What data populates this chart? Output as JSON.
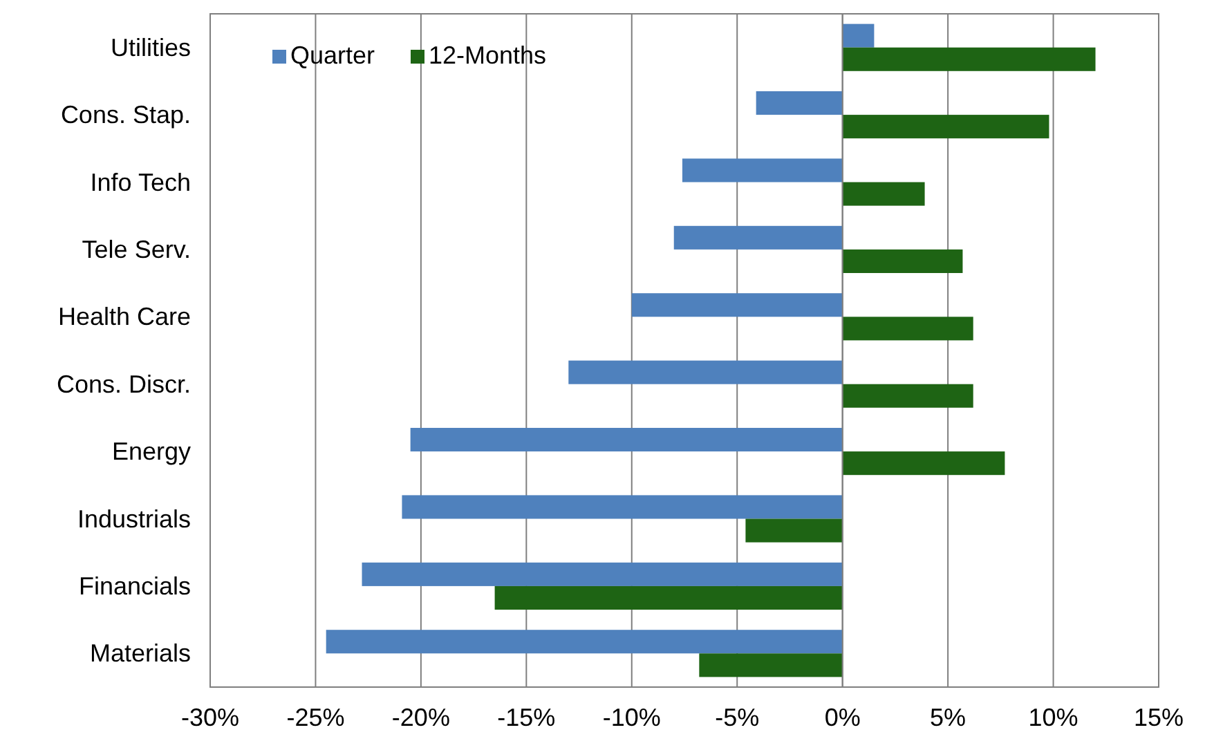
{
  "chart_data": {
    "type": "bar",
    "orientation": "horizontal",
    "categories": [
      "Utilities",
      "Cons. Stap.",
      "Info Tech",
      "Tele Serv.",
      "Health Care",
      "Cons. Discr.",
      "Energy",
      "Industrials",
      "Financials",
      "Materials"
    ],
    "series": [
      {
        "name": "Quarter",
        "color": "#4f81bd",
        "values": [
          1.5,
          -4.1,
          -7.6,
          -8.0,
          -10.0,
          -13.0,
          -20.5,
          -20.9,
          -22.8,
          -24.5
        ]
      },
      {
        "name": "12-Months",
        "color": "#1e6414",
        "values": [
          12.0,
          9.8,
          3.9,
          5.7,
          6.2,
          6.2,
          7.7,
          -4.6,
          -16.5,
          -6.8
        ]
      }
    ],
    "xlim": [
      -30,
      15
    ],
    "xticks": [
      {
        "value": -30,
        "label": "-30%"
      },
      {
        "value": -25,
        "label": "-25%"
      },
      {
        "value": -20,
        "label": "-20%"
      },
      {
        "value": -15,
        "label": "-15%"
      },
      {
        "value": -10,
        "label": "-10%"
      },
      {
        "value": -5,
        "label": "-5%"
      },
      {
        "value": 0,
        "label": "0%"
      },
      {
        "value": 5,
        "label": "5%"
      },
      {
        "value": 10,
        "label": "10%"
      },
      {
        "value": 15,
        "label": "15%"
      }
    ],
    "grid": "x",
    "legend": "top left"
  }
}
